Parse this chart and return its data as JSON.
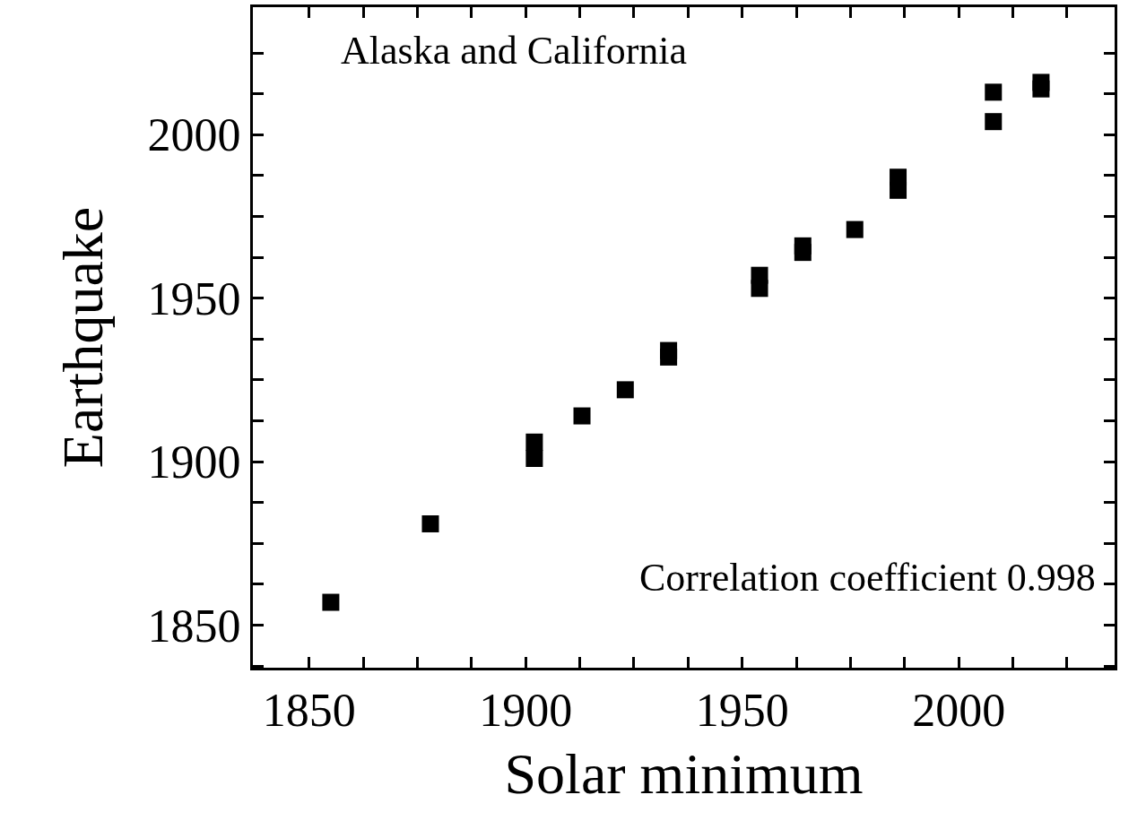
{
  "chart_data": {
    "type": "scatter",
    "xlabel": "Solar minimum",
    "ylabel": "Earthquake",
    "annotations": [
      "Alaska and California",
      "Correlation coefficient 0.998"
    ],
    "x": [
      1855,
      1878,
      1902,
      1902,
      1913,
      1923,
      1933,
      1933,
      1954,
      1954,
      1964,
      1964,
      1976,
      1986,
      1986,
      2008,
      2008,
      2019,
      2019
    ],
    "series": [
      {
        "color": "#000000",
        "values": [
          1857,
          1881,
          1906,
          1901,
          1914,
          1922,
          1934,
          1932,
          1957,
          1953,
          1966,
          1964,
          1971,
          1987,
          1983,
          2013,
          2004,
          2016,
          2014
        ]
      }
    ],
    "marker": "square",
    "xlim": [
      1837,
      2036
    ],
    "ylim": [
      1837,
      2039
    ],
    "xticks": [
      1850,
      {
        "value": 1862.5,
        "label": null
      },
      {
        "value": 1875,
        "label": null
      },
      {
        "value": 1887.5,
        "label": null
      },
      1900,
      {
        "value": 1912.5,
        "label": null
      },
      {
        "value": 1925,
        "label": null
      },
      {
        "value": 1937.5,
        "label": null
      },
      1950,
      {
        "value": 1962.5,
        "label": null
      },
      {
        "value": 1975,
        "label": null
      },
      {
        "value": 1987.5,
        "label": null
      },
      2000,
      {
        "value": 2012.5,
        "label": null
      },
      {
        "value": 2025,
        "label": null
      }
    ],
    "yticks": [
      {
        "value": 1837.5,
        "label": null
      },
      1850,
      {
        "value": 1862.5,
        "label": null
      },
      {
        "value": 1875,
        "label": null
      },
      {
        "value": 1887.5,
        "label": null
      },
      1900,
      {
        "value": 1912.5,
        "label": null
      },
      {
        "value": 1925,
        "label": null
      },
      {
        "value": 1937.5,
        "label": null
      },
      1950,
      {
        "value": 1962.5,
        "label": null
      },
      {
        "value": 1975,
        "label": null
      },
      {
        "value": 1987.5,
        "label": null
      },
      2000,
      {
        "value": 2012.5,
        "label": null
      },
      {
        "value": 2025,
        "label": null
      }
    ],
    "tick_labels": true
  }
}
